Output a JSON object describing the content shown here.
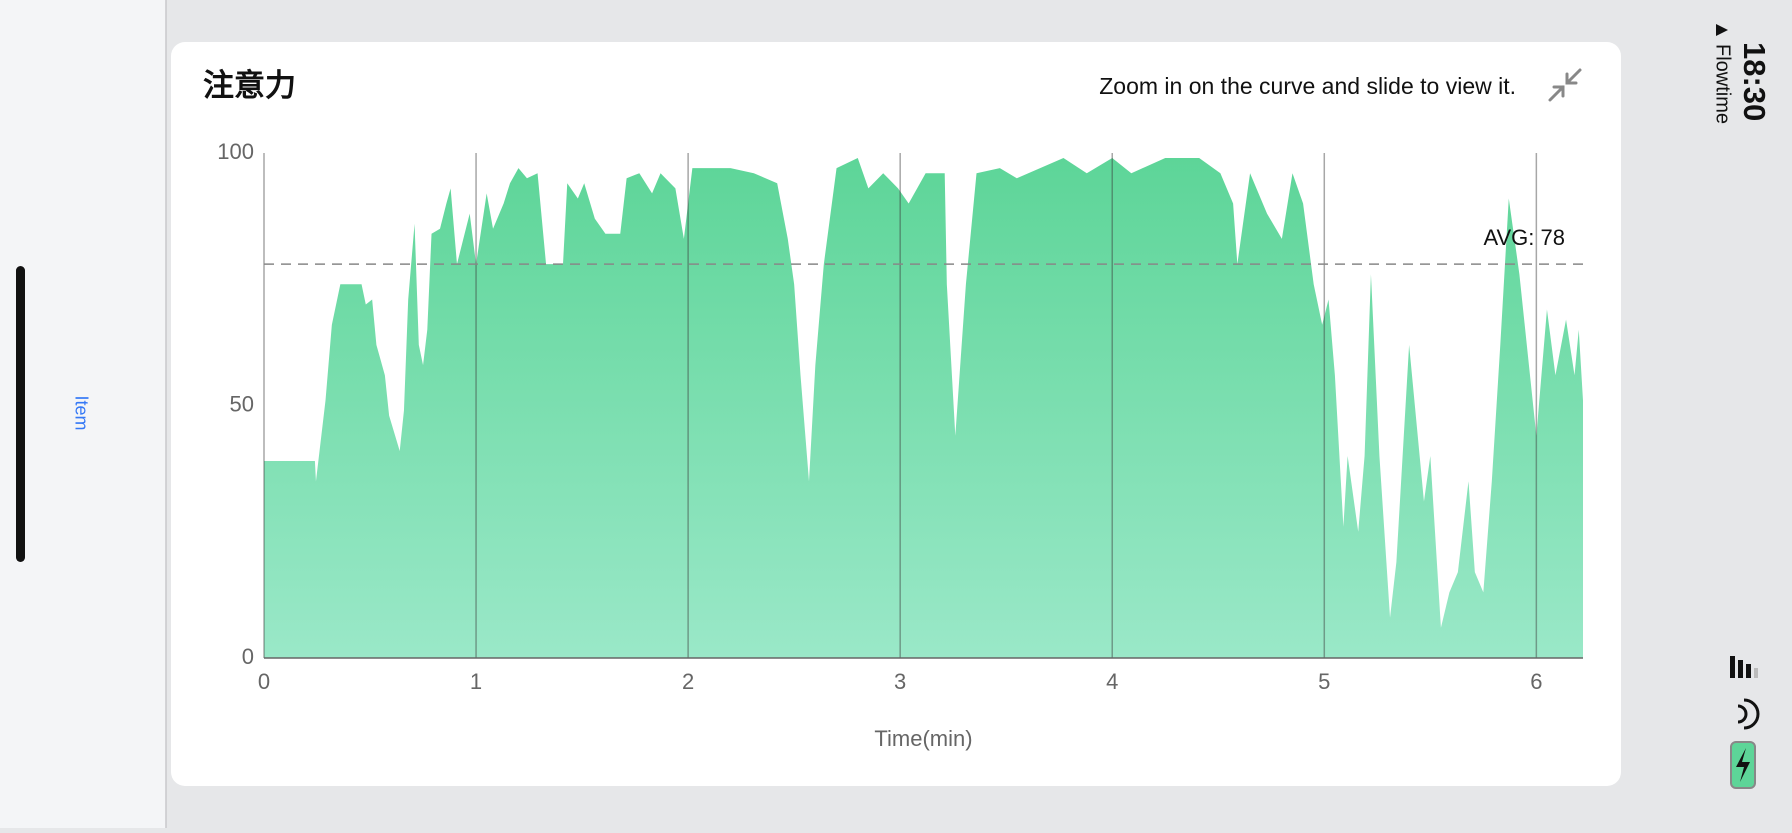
{
  "sidebar": {
    "item": "Item"
  },
  "status_bar": {
    "time": "18:30",
    "back": "Flowtime"
  },
  "card": {
    "title": "注意力",
    "hint": "Zoom in on the curve and slide to view it."
  },
  "chart_data": {
    "type": "area",
    "x_label": "Time(min)",
    "color": "#5dd598",
    "x": [
      0,
      0.24,
      0.245,
      0.29,
      0.32,
      0.36,
      0.46,
      0.48,
      0.51,
      0.53,
      0.57,
      0.59,
      0.64,
      0.66,
      0.68,
      0.71,
      0.73,
      0.75,
      0.77,
      0.79,
      0.83,
      0.86,
      0.88,
      0.91,
      0.97,
      1.0,
      1.05,
      1.08,
      1.13,
      1.16,
      1.2,
      1.24,
      1.29,
      1.33,
      1.41,
      1.43,
      1.48,
      1.51,
      1.56,
      1.61,
      1.68,
      1.71,
      1.77,
      1.83,
      1.87,
      1.94,
      1.98,
      2.02,
      2.1,
      2.2,
      2.31,
      2.42,
      2.47,
      2.5,
      2.53,
      2.57,
      2.6,
      2.64,
      2.7,
      2.8,
      2.85,
      2.92,
      2.99,
      3.04,
      3.12,
      3.21,
      3.22,
      3.26,
      3.31,
      3.36,
      3.47,
      3.55,
      3.66,
      3.77,
      3.88,
      4.0,
      4.09,
      4.25,
      4.41,
      4.51,
      4.57,
      4.59,
      4.65,
      4.73,
      4.8,
      4.85,
      4.9,
      4.95,
      4.99,
      5.02,
      5.05,
      5.09,
      5.11,
      5.16,
      5.19,
      5.22,
      5.26,
      5.31,
      5.34,
      5.4,
      5.47,
      5.5,
      5.55,
      5.59,
      5.63,
      5.68,
      5.71,
      5.75,
      5.79,
      5.83,
      5.87,
      5.92,
      5.97,
      6.0,
      6.05,
      6.09,
      6.14,
      6.18,
      6.2,
      6.22
    ],
    "values": [
      39,
      39,
      35,
      51,
      66,
      74,
      74,
      70,
      71,
      62,
      56,
      48,
      41,
      49,
      71,
      86,
      62,
      58,
      65,
      84,
      85,
      90,
      93,
      78,
      88,
      78,
      92,
      85,
      90,
      94,
      97,
      95,
      96,
      78,
      78,
      94,
      91,
      94,
      87,
      84,
      84,
      95,
      96,
      92,
      96,
      93,
      83,
      97,
      97,
      97,
      96,
      94,
      83,
      74,
      56,
      35,
      58,
      78,
      97,
      99,
      93,
      96,
      93,
      90,
      96,
      96,
      74,
      44,
      74,
      96,
      97,
      95,
      97,
      99,
      96,
      99,
      96,
      99,
      99,
      96,
      90,
      78,
      96,
      88,
      83,
      96,
      90,
      74,
      66,
      71,
      56,
      26,
      40,
      25,
      40,
      76,
      40,
      8,
      19,
      62,
      31,
      40,
      6,
      13,
      17,
      35,
      17,
      13,
      35,
      62,
      91,
      76,
      56,
      44,
      69,
      56,
      67,
      56,
      65,
      51
    ],
    "xlim": [
      0,
      6.22
    ],
    "xticks": [
      0,
      1,
      2,
      3,
      4,
      5,
      6
    ],
    "ylim": [
      0,
      100
    ],
    "yticks": [
      0,
      50,
      100
    ],
    "grid": true,
    "avg": {
      "value": 78,
      "label": "AVG: 78"
    }
  }
}
